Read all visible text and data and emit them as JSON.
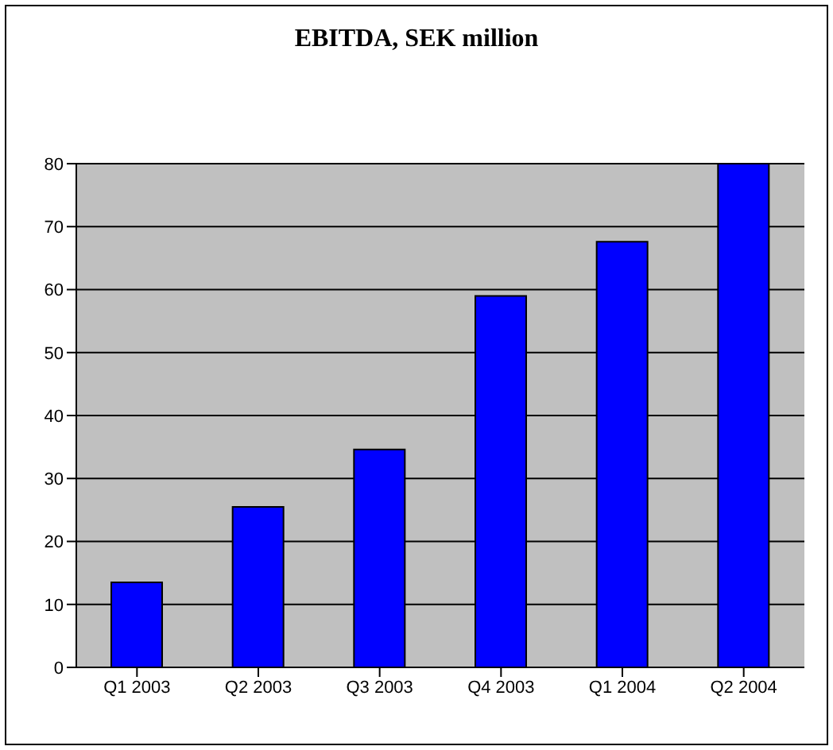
{
  "chart_data": {
    "type": "bar",
    "title": "EBITDA, SEK million",
    "categories": [
      "Q1 2003",
      "Q2 2003",
      "Q3 2003",
      "Q4 2003",
      "Q1 2004",
      "Q2 2004"
    ],
    "values": [
      13.5,
      25.5,
      34.6,
      59,
      67.6,
      80
    ],
    "color": "#0000ff",
    "ylim": [
      0,
      80
    ],
    "yticks": [
      0,
      10,
      20,
      30,
      40,
      50,
      60,
      70,
      80
    ],
    "grid": "y",
    "legend": false
  }
}
